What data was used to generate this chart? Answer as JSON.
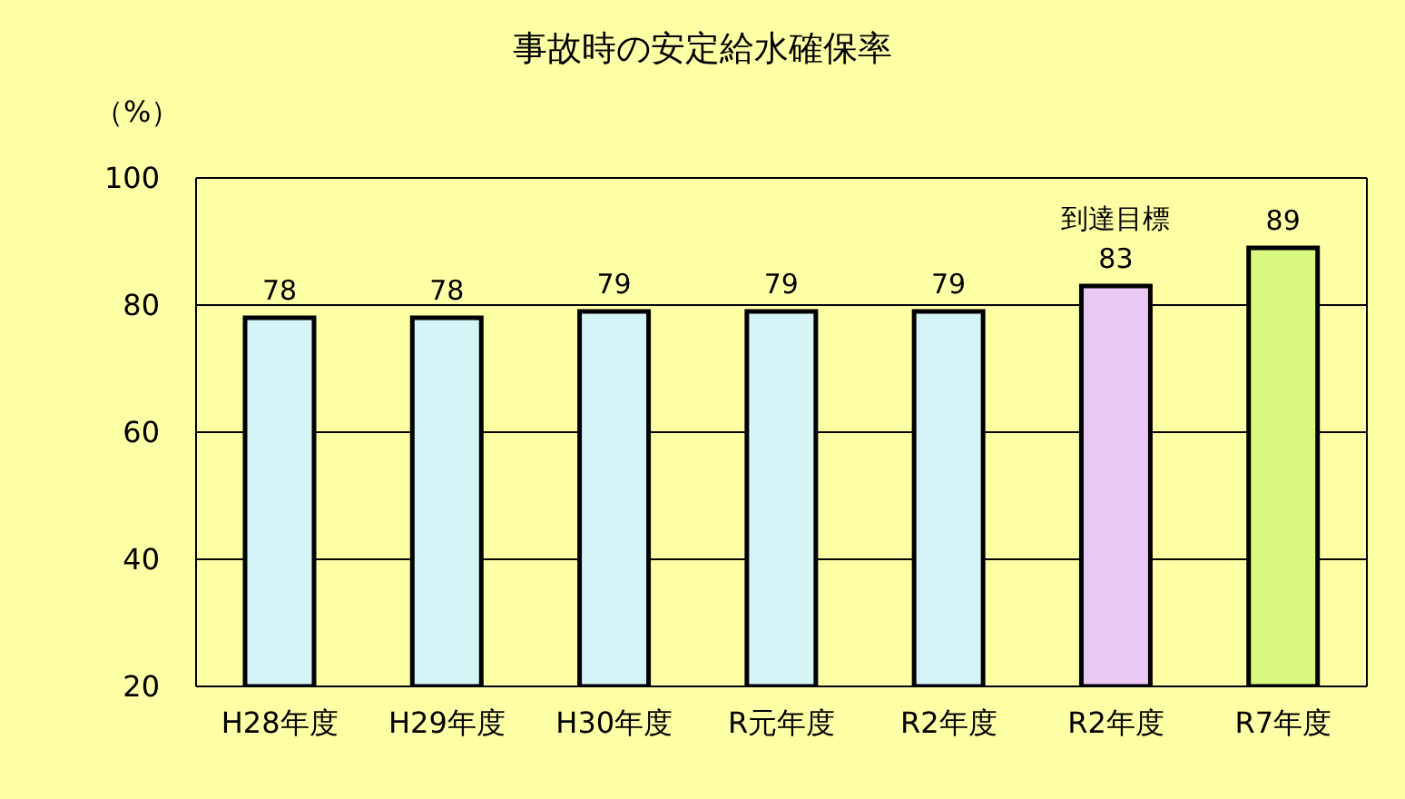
{
  "chart_data": {
    "type": "bar",
    "title": "事故時の安定給水確保率",
    "ylabel": "（%）",
    "categories": [
      "H28年度",
      "H29年度",
      "H30年度",
      "R元年度",
      "R2年度",
      "R2年度",
      "R7年度"
    ],
    "values": [
      78,
      78,
      79,
      79,
      79,
      83,
      89
    ],
    "colors": [
      "#d4f4f8",
      "#d4f4f8",
      "#d4f4f8",
      "#d4f4f8",
      "#d4f4f8",
      "#ecc8f4",
      "#d8f880"
    ],
    "ylim": [
      20,
      100
    ],
    "yticks": [
      20,
      40,
      60,
      80,
      100
    ],
    "grid": "y",
    "value_labels": [
      "78",
      "78",
      "79",
      "79",
      "79",
      "到達目標\n83",
      "89"
    ]
  }
}
